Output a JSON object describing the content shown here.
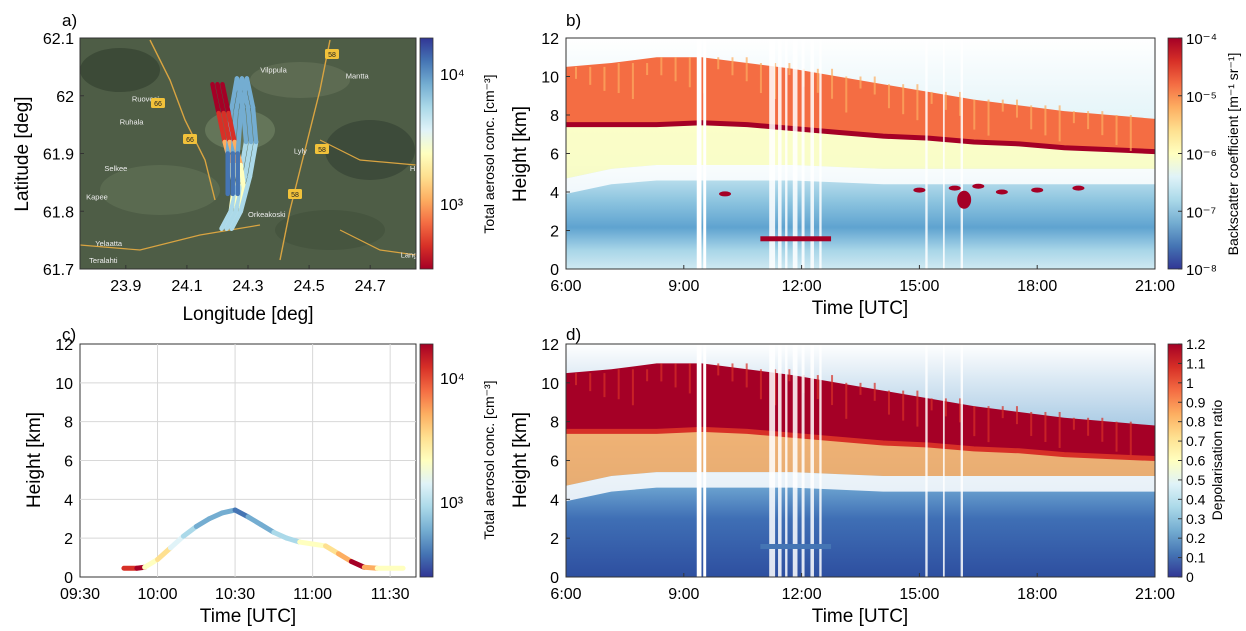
{
  "chart_data": [
    {
      "panel": "a)",
      "type": "map-track",
      "xlabel": "Longitude [deg]",
      "ylabel": "Latitude [deg]",
      "xlim": [
        23.75,
        24.85
      ],
      "ylim": [
        61.7,
        62.1
      ],
      "xticks": [
        "23.9",
        "24.1",
        "24.3",
        "24.5",
        "24.7"
      ],
      "yticks": [
        "61.7",
        "61.8",
        "61.9",
        "62",
        "62.1"
      ],
      "place_labels": [
        {
          "name": "Ruovesi",
          "lon": 23.92,
          "lat": 61.99
        },
        {
          "name": "Ruhala",
          "lon": 23.88,
          "lat": 61.95
        },
        {
          "name": "Selkee",
          "lon": 23.83,
          "lat": 61.87
        },
        {
          "name": "Kapee",
          "lon": 23.77,
          "lat": 61.82
        },
        {
          "name": "Yelaatta",
          "lon": 23.8,
          "lat": 61.74
        },
        {
          "name": "Teralahti",
          "lon": 23.78,
          "lat": 61.71
        },
        {
          "name": "Vilppula",
          "lon": 24.34,
          "lat": 62.04
        },
        {
          "name": "Mantta",
          "lon": 24.62,
          "lat": 62.03
        },
        {
          "name": "Lyly",
          "lon": 24.45,
          "lat": 61.9
        },
        {
          "name": "Halli",
          "lon": 24.83,
          "lat": 61.87
        },
        {
          "name": "Orkeakoski",
          "lon": 24.3,
          "lat": 61.79
        },
        {
          "name": "Langelmaki",
          "lon": 24.8,
          "lat": 61.72
        }
      ],
      "road_badges": [
        "66",
        "58",
        "58",
        "58",
        "66"
      ],
      "track": [
        {
          "lon": 24.2,
          "lat": 62.02,
          "conc": 20000
        },
        {
          "lon": 24.22,
          "lat": 61.97,
          "conc": 12000
        },
        {
          "lon": 24.24,
          "lat": 61.92,
          "conc": 6000
        },
        {
          "lon": 24.26,
          "lat": 61.88,
          "conc": 3000
        },
        {
          "lon": 24.27,
          "lat": 61.84,
          "conc": 2000
        },
        {
          "lon": 24.26,
          "lat": 61.8,
          "conc": 1500
        },
        {
          "lon": 24.23,
          "lat": 61.77,
          "conc": 1200
        },
        {
          "lon": 24.26,
          "lat": 61.8,
          "conc": 1000
        },
        {
          "lon": 24.29,
          "lat": 61.86,
          "conc": 900
        },
        {
          "lon": 24.31,
          "lat": 61.92,
          "conc": 800
        },
        {
          "lon": 24.3,
          "lat": 61.98,
          "conc": 700
        },
        {
          "lon": 24.28,
          "lat": 62.03,
          "conc": 650
        },
        {
          "lon": 24.26,
          "lat": 61.97,
          "conc": 600
        },
        {
          "lon": 24.25,
          "lat": 61.9,
          "conc": 550
        },
        {
          "lon": 24.25,
          "lat": 61.83,
          "conc": 600
        }
      ],
      "colorbar": {
        "label": "Total aerosol conc. [cm⁻³]",
        "ticks": [
          "10⁴",
          "10³"
        ],
        "reversed": true
      }
    },
    {
      "panel": "b)",
      "type": "heatmap",
      "xlabel": "Time [UTC]",
      "ylabel": "Height [km]",
      "xticks": [
        "6:00",
        "9:00",
        "12:00",
        "15:00",
        "18:00",
        "21:00"
      ],
      "yticks": [
        "0",
        "2",
        "4",
        "6",
        "8",
        "10",
        "12"
      ],
      "ylim": [
        0,
        12
      ],
      "colorbar": {
        "label": "Backscatter coefficient [m⁻¹ sr⁻¹]",
        "ticks": [
          "10⁻⁴",
          "10⁻⁵",
          "10⁻⁶",
          "10⁻⁷",
          "10⁻⁸"
        ],
        "scale": "log"
      },
      "cloud_top_km": [
        10.5,
        10.7,
        11,
        11,
        10.7,
        10.4,
        10,
        9.6,
        9.2,
        8.8,
        8.5,
        8.2,
        8,
        7.8
      ],
      "cloud_base_km": [
        7.5,
        7.5,
        7.5,
        7.6,
        7.5,
        7.3,
        7.1,
        6.9,
        6.8,
        6.6,
        6.5,
        6.3,
        6.2,
        6.1
      ],
      "lower_layer_km": [
        3.5,
        4,
        4.2,
        4.2,
        4.2,
        4.2,
        4.1,
        4,
        4,
        4,
        4,
        4,
        4,
        4
      ]
    },
    {
      "panel": "c)",
      "type": "scatter",
      "xlabel": "Time [UTC]",
      "ylabel": "Height [km]",
      "xticks": [
        "09:30",
        "10:00",
        "10:30",
        "11:00",
        "11:30"
      ],
      "yticks": [
        "0",
        "2",
        "4",
        "6",
        "8",
        "10",
        "12"
      ],
      "xlim": [
        "09:30",
        "11:40"
      ],
      "ylim": [
        0,
        12
      ],
      "points": [
        {
          "t": "09:47",
          "h": 0.45,
          "conc": 15000
        },
        {
          "t": "09:52",
          "h": 0.45,
          "conc": 20000
        },
        {
          "t": "09:55",
          "h": 0.5,
          "conc": 3000
        },
        {
          "t": "10:00",
          "h": 0.9,
          "conc": 3500
        },
        {
          "t": "10:05",
          "h": 1.5,
          "conc": 1500
        },
        {
          "t": "10:10",
          "h": 2.1,
          "conc": 1000
        },
        {
          "t": "10:15",
          "h": 2.6,
          "conc": 800
        },
        {
          "t": "10:20",
          "h": 3.0,
          "conc": 700
        },
        {
          "t": "10:25",
          "h": 3.3,
          "conc": 600
        },
        {
          "t": "10:30",
          "h": 3.45,
          "conc": 500
        },
        {
          "t": "10:35",
          "h": 3.1,
          "conc": 700
        },
        {
          "t": "10:40",
          "h": 2.7,
          "conc": 800
        },
        {
          "t": "10:45",
          "h": 2.3,
          "conc": 900
        },
        {
          "t": "10:50",
          "h": 2.0,
          "conc": 1000
        },
        {
          "t": "10:55",
          "h": 1.8,
          "conc": 2500
        },
        {
          "t": "11:00",
          "h": 1.7,
          "conc": 3000
        },
        {
          "t": "11:05",
          "h": 1.6,
          "conc": 3500
        },
        {
          "t": "11:10",
          "h": 1.2,
          "conc": 6000
        },
        {
          "t": "11:15",
          "h": 0.8,
          "conc": 20000
        },
        {
          "t": "11:20",
          "h": 0.5,
          "conc": 5000
        },
        {
          "t": "11:25",
          "h": 0.45,
          "conc": 3000
        },
        {
          "t": "11:30",
          "h": 0.45,
          "conc": 2500
        },
        {
          "t": "11:35",
          "h": 0.45,
          "conc": 2000
        }
      ],
      "colorbar": {
        "label": "Total aerosol conc. [cm⁻³]",
        "ticks": [
          "10⁴",
          "10³"
        ]
      }
    },
    {
      "panel": "d)",
      "type": "heatmap",
      "xlabel": "Time [UTC]",
      "ylabel": "Height [km]",
      "xticks": [
        "6:00",
        "9:00",
        "12:00",
        "15:00",
        "18:00",
        "21:00"
      ],
      "yticks": [
        "0",
        "2",
        "4",
        "6",
        "8",
        "10",
        "12"
      ],
      "ylim": [
        0,
        12
      ],
      "colorbar": {
        "label": "Depolarisation ratio",
        "ticks": [
          "0",
          "0.1",
          "0.2",
          "0.3",
          "0.4",
          "0.5",
          "0.6",
          "0.7",
          "0.8",
          "0.9",
          "1",
          "1.1",
          "1.2"
        ],
        "range": [
          0,
          1.2
        ]
      }
    }
  ],
  "colors": {
    "dark_red": "#a50026",
    "red": "#d73027",
    "orange": "#f46d43",
    "light_orange": "#fdae61",
    "yellow": "#fee090",
    "pale": "#ffffbf",
    "light_blue": "#e0f3f8",
    "sky": "#abd9e9",
    "blue": "#74add1",
    "mid_blue": "#4575b4",
    "navy": "#313695"
  }
}
